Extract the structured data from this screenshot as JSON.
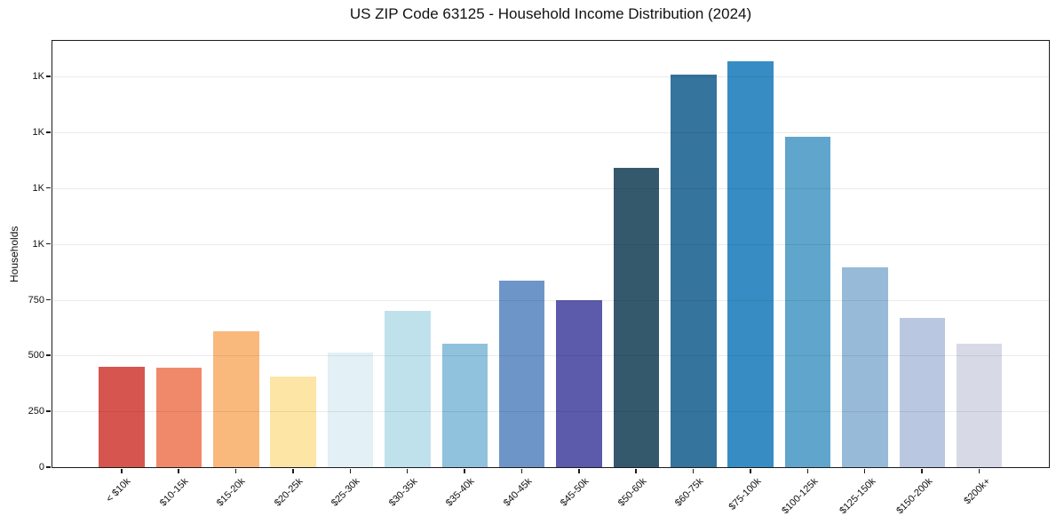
{
  "title": "US ZIP Code 63125 - Household Income Distribution (2024)",
  "chart_data": {
    "type": "bar",
    "title": "US ZIP Code 63125 - Household Income Distribution (2024)",
    "xlabel": "",
    "ylabel": "Households",
    "ylim": [
      0,
      1910
    ],
    "grid": "horizontal-only",
    "legend": "none",
    "bar_width_fraction": 0.8,
    "categories": [
      "< $10k",
      "$10-15k",
      "$15-20k",
      "$20-25k",
      "$25-30k",
      "$30-35k",
      "$35-40k",
      "$40-45k",
      "$45-50k",
      "$50-60k",
      "$60-75k",
      "$75-100k",
      "$100-125k",
      "$125-150k",
      "$150-200k",
      "$200k+"
    ],
    "values": [
      450,
      445,
      610,
      405,
      515,
      700,
      555,
      834,
      750,
      1342,
      1760,
      1820,
      1479,
      896,
      668,
      555
    ],
    "bar_colors": [
      "#d6564f",
      "#f0896a",
      "#fab97c",
      "#fde5a5",
      "#e3f0f5",
      "#bfe1ec",
      "#90c1dd",
      "#6e95c7",
      "#5b5aab",
      "#34596d",
      "#35749c",
      "#378dc3",
      "#5fa5cc",
      "#97bad8",
      "#b9c8e0",
      "#d7d9e7"
    ],
    "y_ticks": [
      {
        "value": 0,
        "label": "0"
      },
      {
        "value": 250,
        "label": "250"
      },
      {
        "value": 500,
        "label": "500"
      },
      {
        "value": 750,
        "label": "750"
      },
      {
        "value": 1000,
        "label": "1K"
      },
      {
        "value": 1250,
        "label": "1K"
      },
      {
        "value": 1500,
        "label": "1K"
      },
      {
        "value": 1750,
        "label": "1K"
      }
    ]
  },
  "colors": {
    "background": "#ffffff",
    "grid": "#e8e8e8",
    "spine": "#1b1b1b",
    "text": "#111111"
  }
}
